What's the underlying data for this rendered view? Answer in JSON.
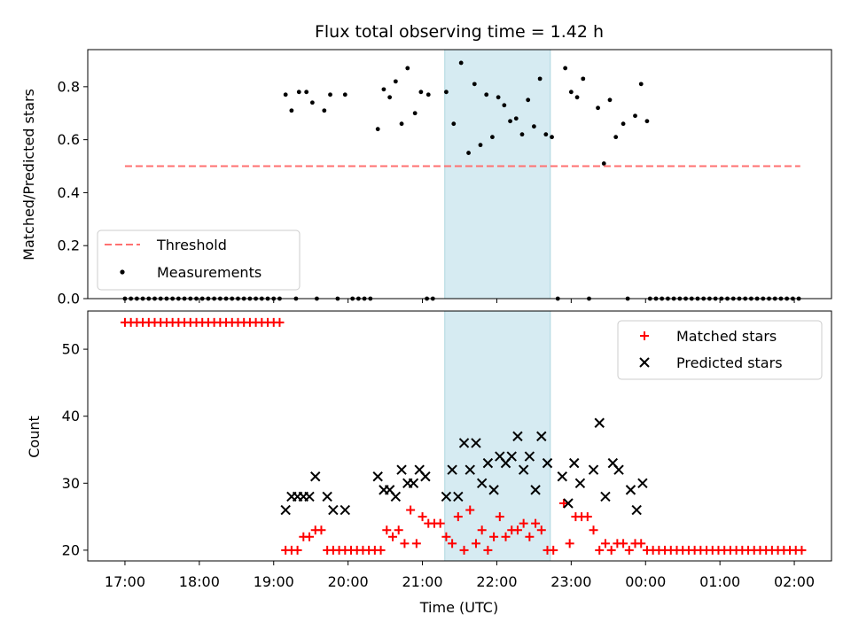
{
  "chart_data": {
    "title": "Flux total observing time = 1.42 h",
    "xlabel": "Time (UTC)",
    "x_unit": "hours after 17:00 UTC",
    "xlim": [
      -0.5,
      9.5
    ],
    "xticks": [
      {
        "value": 0,
        "label": "17:00"
      },
      {
        "value": 1,
        "label": "18:00"
      },
      {
        "value": 2,
        "label": "19:00"
      },
      {
        "value": 3,
        "label": "20:00"
      },
      {
        "value": 4,
        "label": "21:00"
      },
      {
        "value": 5,
        "label": "22:00"
      },
      {
        "value": 6,
        "label": "23:00"
      },
      {
        "value": 7,
        "label": "00:00"
      },
      {
        "value": 8,
        "label": "01:00"
      },
      {
        "value": 9,
        "label": "02:00"
      }
    ],
    "shaded_region": {
      "x0": 4.3,
      "x1": 5.72,
      "color": "#add8e6"
    },
    "top": {
      "type": "scatter",
      "ylabel": "Matched/Predicted stars",
      "ylim": [
        0,
        0.94
      ],
      "yticks": [
        {
          "value": 0.0,
          "label": "0.0"
        },
        {
          "value": 0.2,
          "label": "0.2"
        },
        {
          "value": 0.4,
          "label": "0.4"
        },
        {
          "value": 0.6,
          "label": "0.6"
        },
        {
          "value": 0.8,
          "label": "0.8"
        }
      ],
      "legend_position": "lower-left",
      "threshold": {
        "name": "Threshold",
        "value": 0.5,
        "x": [
          0,
          9.08
        ],
        "color": "#ff7070"
      },
      "measurements": {
        "name": "Measurements",
        "color": "#000000",
        "x_zero": [
          0,
          0.08,
          0.16,
          0.24,
          0.32,
          0.4,
          0.48,
          0.56,
          0.64,
          0.72,
          0.8,
          0.88,
          0.96,
          1.04,
          1.12,
          1.2,
          1.28,
          1.36,
          1.44,
          1.52,
          1.6,
          1.68,
          1.76,
          1.84,
          1.92,
          2.0,
          2.08,
          2.3,
          2.58,
          2.86,
          3.06,
          3.14,
          3.22,
          3.3,
          4.06,
          4.14,
          5.82,
          6.24,
          6.76,
          7.06,
          7.14,
          7.22,
          7.3,
          7.38,
          7.46,
          7.54,
          7.62,
          7.7,
          7.78,
          7.86,
          7.94,
          8.02,
          8.1,
          8.18,
          8.26,
          8.34,
          8.42,
          8.5,
          8.58,
          8.66,
          8.74,
          8.82,
          8.9,
          8.98,
          9.06
        ],
        "points": [
          [
            2.16,
            0.77
          ],
          [
            2.24,
            0.71
          ],
          [
            2.34,
            0.78
          ],
          [
            2.44,
            0.78
          ],
          [
            2.52,
            0.74
          ],
          [
            2.68,
            0.71
          ],
          [
            2.76,
            0.77
          ],
          [
            2.96,
            0.77
          ],
          [
            3.4,
            0.64
          ],
          [
            3.48,
            0.79
          ],
          [
            3.56,
            0.76
          ],
          [
            3.64,
            0.82
          ],
          [
            3.72,
            0.66
          ],
          [
            3.8,
            0.87
          ],
          [
            3.9,
            0.7
          ],
          [
            3.98,
            0.78
          ],
          [
            4.08,
            0.77
          ],
          [
            4.32,
            0.78
          ],
          [
            4.42,
            0.66
          ],
          [
            4.52,
            0.89
          ],
          [
            4.62,
            0.55
          ],
          [
            4.7,
            0.81
          ],
          [
            4.78,
            0.58
          ],
          [
            4.86,
            0.77
          ],
          [
            4.94,
            0.61
          ],
          [
            5.02,
            0.76
          ],
          [
            5.1,
            0.73
          ],
          [
            5.18,
            0.67
          ],
          [
            5.26,
            0.68
          ],
          [
            5.34,
            0.62
          ],
          [
            5.42,
            0.75
          ],
          [
            5.5,
            0.65
          ],
          [
            5.58,
            0.83
          ],
          [
            5.66,
            0.62
          ],
          [
            5.74,
            0.61
          ],
          [
            5.92,
            0.87
          ],
          [
            6.0,
            0.78
          ],
          [
            6.08,
            0.76
          ],
          [
            6.16,
            0.83
          ],
          [
            6.36,
            0.72
          ],
          [
            6.44,
            0.51
          ],
          [
            6.52,
            0.75
          ],
          [
            6.6,
            0.61
          ],
          [
            6.7,
            0.66
          ],
          [
            6.86,
            0.69
          ],
          [
            6.94,
            0.81
          ],
          [
            7.02,
            0.67
          ]
        ]
      }
    },
    "bottom": {
      "type": "scatter",
      "ylabel": "Count",
      "ylim": [
        18.4,
        55.7
      ],
      "yticks": [
        {
          "value": 20,
          "label": "20"
        },
        {
          "value": 30,
          "label": "30"
        },
        {
          "value": 40,
          "label": "40"
        },
        {
          "value": 50,
          "label": "50"
        }
      ],
      "legend_position": "upper-right",
      "matched": {
        "name": "Matched stars",
        "marker": "plus",
        "color": "#ff0000",
        "points": [
          [
            0,
            54
          ],
          [
            0.08,
            54
          ],
          [
            0.16,
            54
          ],
          [
            0.24,
            54
          ],
          [
            0.32,
            54
          ],
          [
            0.4,
            54
          ],
          [
            0.48,
            54
          ],
          [
            0.56,
            54
          ],
          [
            0.64,
            54
          ],
          [
            0.72,
            54
          ],
          [
            0.8,
            54
          ],
          [
            0.88,
            54
          ],
          [
            0.96,
            54
          ],
          [
            1.04,
            54
          ],
          [
            1.12,
            54
          ],
          [
            1.2,
            54
          ],
          [
            1.28,
            54
          ],
          [
            1.36,
            54
          ],
          [
            1.44,
            54
          ],
          [
            1.52,
            54
          ],
          [
            1.6,
            54
          ],
          [
            1.68,
            54
          ],
          [
            1.76,
            54
          ],
          [
            1.84,
            54
          ],
          [
            1.92,
            54
          ],
          [
            2.0,
            54
          ],
          [
            2.08,
            54
          ],
          [
            2.16,
            20
          ],
          [
            2.24,
            20
          ],
          [
            2.32,
            20
          ],
          [
            2.4,
            22
          ],
          [
            2.48,
            22
          ],
          [
            2.56,
            23
          ],
          [
            2.64,
            23
          ],
          [
            2.72,
            20
          ],
          [
            2.8,
            20
          ],
          [
            2.88,
            20
          ],
          [
            2.96,
            20
          ],
          [
            3.04,
            20
          ],
          [
            3.12,
            20
          ],
          [
            3.2,
            20
          ],
          [
            3.28,
            20
          ],
          [
            3.36,
            20
          ],
          [
            3.44,
            20
          ],
          [
            3.52,
            23
          ],
          [
            3.6,
            22
          ],
          [
            3.68,
            23
          ],
          [
            3.76,
            21
          ],
          [
            3.84,
            26
          ],
          [
            3.92,
            21
          ],
          [
            4.0,
            25
          ],
          [
            4.08,
            24
          ],
          [
            4.16,
            24
          ],
          [
            4.24,
            24
          ],
          [
            4.32,
            22
          ],
          [
            4.4,
            21
          ],
          [
            4.48,
            25
          ],
          [
            4.56,
            20
          ],
          [
            4.64,
            26
          ],
          [
            4.72,
            21
          ],
          [
            4.8,
            23
          ],
          [
            4.88,
            20
          ],
          [
            4.96,
            22
          ],
          [
            5.04,
            25
          ],
          [
            5.12,
            22
          ],
          [
            5.2,
            23
          ],
          [
            5.28,
            23
          ],
          [
            5.36,
            24
          ],
          [
            5.44,
            22
          ],
          [
            5.52,
            24
          ],
          [
            5.6,
            23
          ],
          [
            5.68,
            20
          ],
          [
            5.76,
            20
          ],
          [
            5.9,
            27
          ],
          [
            5.98,
            21
          ],
          [
            6.06,
            25
          ],
          [
            6.14,
            25
          ],
          [
            6.22,
            25
          ],
          [
            6.3,
            23
          ],
          [
            6.38,
            20
          ],
          [
            6.46,
            21
          ],
          [
            6.54,
            20
          ],
          [
            6.62,
            21
          ],
          [
            6.7,
            21
          ],
          [
            6.78,
            20
          ],
          [
            6.86,
            21
          ],
          [
            6.94,
            21
          ],
          [
            7.02,
            20
          ],
          [
            7.1,
            20
          ],
          [
            7.18,
            20
          ],
          [
            7.26,
            20
          ],
          [
            7.34,
            20
          ],
          [
            7.42,
            20
          ],
          [
            7.5,
            20
          ],
          [
            7.58,
            20
          ],
          [
            7.66,
            20
          ],
          [
            7.74,
            20
          ],
          [
            7.82,
            20
          ],
          [
            7.9,
            20
          ],
          [
            7.98,
            20
          ],
          [
            8.06,
            20
          ],
          [
            8.14,
            20
          ],
          [
            8.22,
            20
          ],
          [
            8.3,
            20
          ],
          [
            8.38,
            20
          ],
          [
            8.46,
            20
          ],
          [
            8.54,
            20
          ],
          [
            8.62,
            20
          ],
          [
            8.7,
            20
          ],
          [
            8.78,
            20
          ],
          [
            8.86,
            20
          ],
          [
            8.94,
            20
          ],
          [
            9.02,
            20
          ],
          [
            9.1,
            20
          ]
        ]
      },
      "predicted": {
        "name": "Predicted stars",
        "marker": "x",
        "color": "#000000",
        "points": [
          [
            2.16,
            26
          ],
          [
            2.24,
            28
          ],
          [
            2.32,
            28
          ],
          [
            2.4,
            28
          ],
          [
            2.48,
            28
          ],
          [
            2.56,
            31
          ],
          [
            2.72,
            28
          ],
          [
            2.8,
            26
          ],
          [
            2.96,
            26
          ],
          [
            3.4,
            31
          ],
          [
            3.48,
            29
          ],
          [
            3.56,
            29
          ],
          [
            3.64,
            28
          ],
          [
            3.72,
            32
          ],
          [
            3.8,
            30
          ],
          [
            3.88,
            30
          ],
          [
            3.96,
            32
          ],
          [
            4.04,
            31
          ],
          [
            4.32,
            28
          ],
          [
            4.4,
            32
          ],
          [
            4.48,
            28
          ],
          [
            4.56,
            36
          ],
          [
            4.64,
            32
          ],
          [
            4.72,
            36
          ],
          [
            4.8,
            30
          ],
          [
            4.88,
            33
          ],
          [
            4.96,
            29
          ],
          [
            5.04,
            34
          ],
          [
            5.12,
            33
          ],
          [
            5.2,
            34
          ],
          [
            5.28,
            37
          ],
          [
            5.36,
            32
          ],
          [
            5.44,
            34
          ],
          [
            5.52,
            29
          ],
          [
            5.6,
            37
          ],
          [
            5.68,
            33
          ],
          [
            5.88,
            31
          ],
          [
            5.96,
            27
          ],
          [
            6.04,
            33
          ],
          [
            6.12,
            30
          ],
          [
            6.3,
            32
          ],
          [
            6.38,
            39
          ],
          [
            6.46,
            28
          ],
          [
            6.56,
            33
          ],
          [
            6.64,
            32
          ],
          [
            6.8,
            29
          ],
          [
            6.88,
            26
          ],
          [
            6.96,
            30
          ]
        ]
      }
    }
  }
}
